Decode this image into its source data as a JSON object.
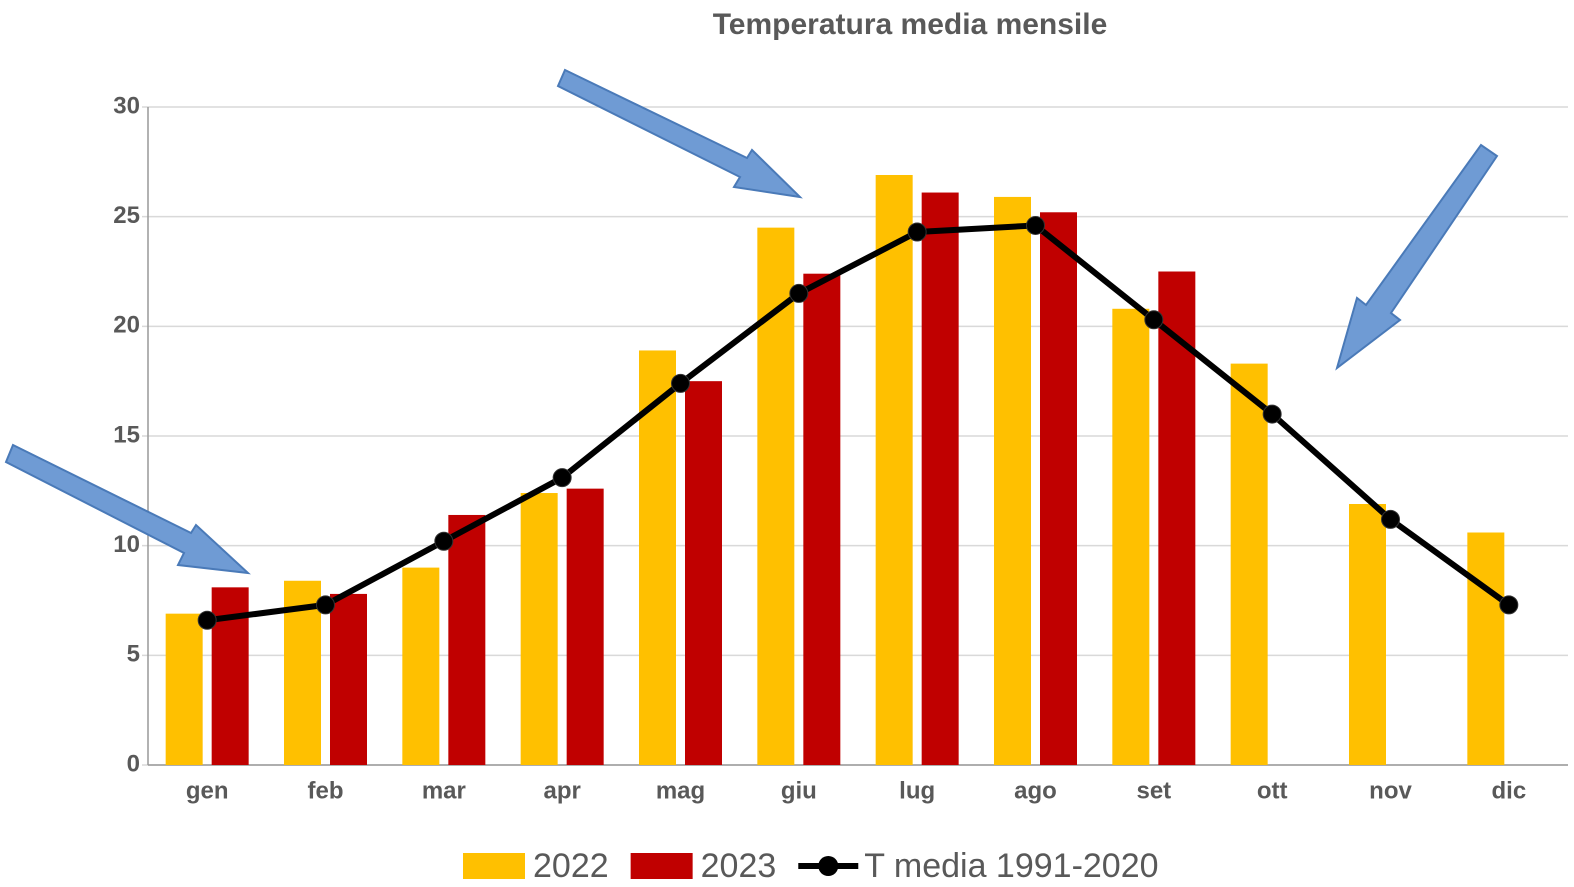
{
  "chart_data": {
    "type": "bar_line",
    "title": "Temperatura media mensile",
    "categories": [
      "gen",
      "feb",
      "mar",
      "apr",
      "mag",
      "giu",
      "lug",
      "ago",
      "set",
      "ott",
      "nov",
      "dic"
    ],
    "series": [
      {
        "name": "2022",
        "type": "bar",
        "color": "#ffc000",
        "values": [
          6.9,
          8.4,
          9.0,
          12.4,
          18.9,
          24.5,
          26.9,
          25.9,
          20.8,
          18.3,
          11.9,
          10.6
        ]
      },
      {
        "name": "2023",
        "type": "bar",
        "color": "#c00000",
        "values": [
          8.1,
          7.8,
          11.4,
          12.6,
          17.5,
          22.4,
          26.1,
          25.2,
          22.5,
          null,
          null,
          null
        ]
      },
      {
        "name": "T media 1991-2020",
        "type": "line",
        "color": "#000000",
        "values": [
          6.6,
          7.3,
          10.2,
          13.1,
          17.4,
          21.5,
          24.3,
          24.6,
          20.3,
          16.0,
          11.2,
          7.3
        ]
      }
    ],
    "ylim": [
      0,
      30
    ],
    "yticks": [
      0,
      5,
      10,
      15,
      20,
      25,
      30
    ],
    "grid": true,
    "legend": "bottom"
  }
}
